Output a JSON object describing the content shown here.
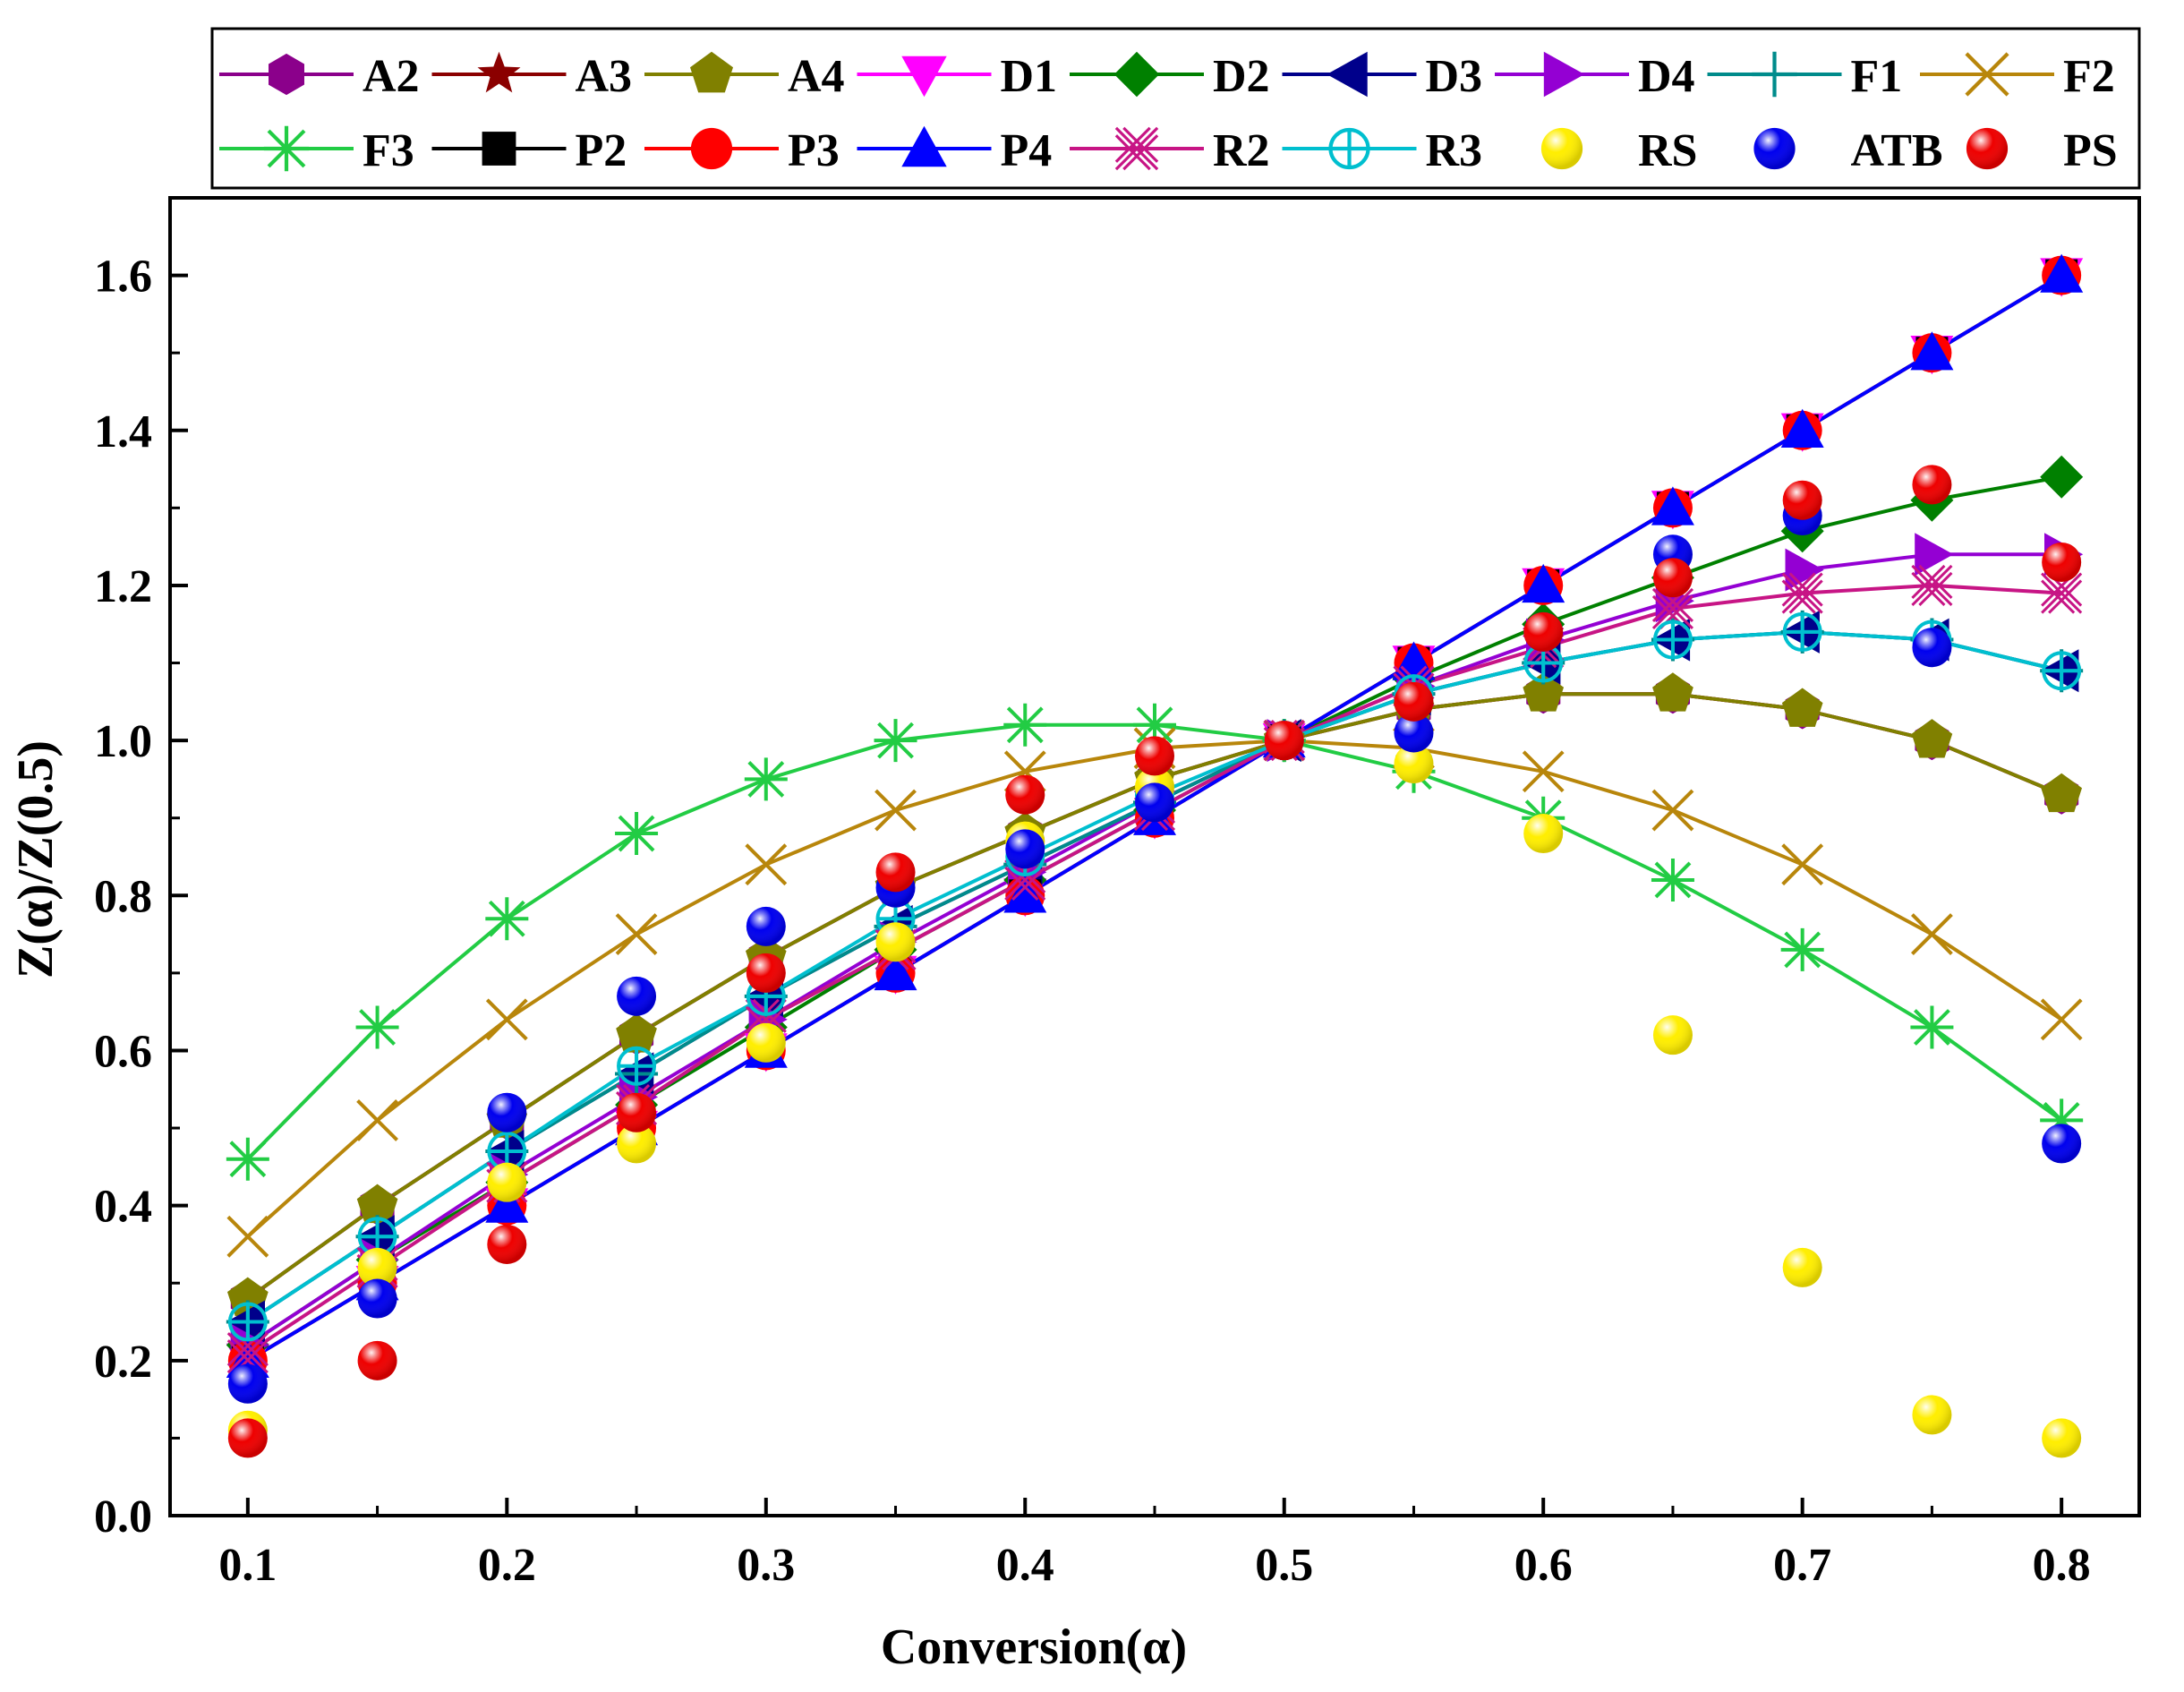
{
  "chart_data": {
    "type": "line",
    "title": "",
    "xlabel": "Conversion(α)",
    "ylabel": "Z(α)/Z(0.5)",
    "xlim": [
      0.07,
      0.83
    ],
    "ylim": [
      0.0,
      1.7
    ],
    "xticks": [
      0.1,
      0.2,
      0.3,
      0.4,
      0.5,
      0.6,
      0.7,
      0.8
    ],
    "xtick_labels": [
      "0.1",
      "0.2",
      "0.3",
      "0.4",
      "0.5",
      "0.6",
      "0.7",
      "0.8"
    ],
    "yticks": [
      0.0,
      0.2,
      0.4,
      0.6,
      0.8,
      1.0,
      1.2,
      1.4,
      1.6
    ],
    "ytick_labels": [
      "0.0",
      "0.2",
      "0.4",
      "0.6",
      "0.8",
      "1.0",
      "1.2",
      "1.4",
      "1.6"
    ],
    "x": [
      0.1,
      0.15,
      0.2,
      0.25,
      0.3,
      0.35,
      0.4,
      0.45,
      0.5,
      0.55,
      0.6,
      0.65,
      0.7,
      0.75,
      0.8
    ],
    "legend_position": "top",
    "series": [
      {
        "name": "A2",
        "color": "#8B008B",
        "marker": "hexagon",
        "line": true,
        "values": [
          0.28,
          0.4,
          0.51,
          0.62,
          0.72,
          0.81,
          0.88,
          0.95,
          1.0,
          1.04,
          1.06,
          1.06,
          1.04,
          1.0,
          0.93
        ]
      },
      {
        "name": "A3",
        "color": "#8B0000",
        "marker": "star",
        "line": true,
        "values": [
          0.28,
          0.4,
          0.51,
          0.62,
          0.72,
          0.81,
          0.88,
          0.95,
          1.0,
          1.04,
          1.06,
          1.06,
          1.04,
          1.0,
          0.93
        ]
      },
      {
        "name": "A4",
        "color": "#808000",
        "marker": "pentagon",
        "line": true,
        "values": [
          0.28,
          0.4,
          0.51,
          0.62,
          0.72,
          0.81,
          0.88,
          0.95,
          1.0,
          1.04,
          1.06,
          1.06,
          1.04,
          1.0,
          0.93
        ]
      },
      {
        "name": "D1",
        "color": "#FF00FF",
        "marker": "triangle-down",
        "line": true,
        "values": [
          0.2,
          0.3,
          0.4,
          0.5,
          0.6,
          0.7,
          0.8,
          0.9,
          1.0,
          1.1,
          1.2,
          1.3,
          1.4,
          1.5,
          1.6
        ]
      },
      {
        "name": "D2",
        "color": "#008000",
        "marker": "diamond",
        "line": true,
        "values": [
          0.22,
          0.33,
          0.43,
          0.53,
          0.63,
          0.73,
          0.82,
          0.91,
          1.0,
          1.08,
          1.15,
          1.21,
          1.27,
          1.31,
          1.34
        ]
      },
      {
        "name": "D3",
        "color": "#00008B",
        "marker": "triangle-left",
        "line": true,
        "values": [
          0.25,
          0.36,
          0.47,
          0.57,
          0.67,
          0.76,
          0.84,
          0.92,
          1.0,
          1.06,
          1.1,
          1.13,
          1.14,
          1.13,
          1.09
        ]
      },
      {
        "name": "D4",
        "color": "#9400D3",
        "marker": "triangle-right",
        "line": true,
        "values": [
          0.22,
          0.33,
          0.44,
          0.54,
          0.64,
          0.74,
          0.83,
          0.92,
          1.0,
          1.07,
          1.13,
          1.18,
          1.22,
          1.24,
          1.24
        ]
      },
      {
        "name": "F1",
        "color": "#008B8B",
        "marker": "plus",
        "line": true,
        "values": [
          0.25,
          0.36,
          0.47,
          0.57,
          0.67,
          0.76,
          0.84,
          0.92,
          1.0,
          1.06,
          1.1,
          1.13,
          1.14,
          1.13,
          1.09
        ]
      },
      {
        "name": "F2",
        "color": "#B8860B",
        "marker": "x",
        "line": true,
        "values": [
          0.36,
          0.51,
          0.64,
          0.75,
          0.84,
          0.91,
          0.96,
          0.99,
          1.0,
          0.99,
          0.96,
          0.91,
          0.84,
          0.75,
          0.64
        ]
      },
      {
        "name": "F3",
        "color": "#22CC44",
        "marker": "asterisk",
        "line": true,
        "values": [
          0.46,
          0.63,
          0.77,
          0.88,
          0.95,
          1.0,
          1.02,
          1.02,
          1.0,
          0.96,
          0.9,
          0.82,
          0.73,
          0.63,
          0.51
        ]
      },
      {
        "name": "P2",
        "color": "#000000",
        "marker": "square",
        "line": true,
        "values": [
          0.2,
          0.3,
          0.4,
          0.5,
          0.6,
          0.7,
          0.8,
          0.9,
          1.0,
          1.1,
          1.2,
          1.3,
          1.4,
          1.5,
          1.6
        ]
      },
      {
        "name": "P3",
        "color": "#FF0000",
        "marker": "circle",
        "line": true,
        "values": [
          0.2,
          0.3,
          0.4,
          0.5,
          0.6,
          0.7,
          0.8,
          0.9,
          1.0,
          1.1,
          1.2,
          1.3,
          1.4,
          1.5,
          1.6
        ]
      },
      {
        "name": "P4",
        "color": "#0000FF",
        "marker": "triangle-up",
        "line": true,
        "values": [
          0.2,
          0.3,
          0.4,
          0.5,
          0.6,
          0.7,
          0.8,
          0.9,
          1.0,
          1.1,
          1.2,
          1.3,
          1.4,
          1.5,
          1.6
        ]
      },
      {
        "name": "R2",
        "color": "#C71585",
        "marker": "x-box",
        "line": true,
        "values": [
          0.21,
          0.32,
          0.43,
          0.53,
          0.64,
          0.73,
          0.82,
          0.91,
          1.0,
          1.07,
          1.12,
          1.17,
          1.19,
          1.2,
          1.19
        ]
      },
      {
        "name": "R3",
        "color": "#00BFCF",
        "marker": "circle-plus",
        "line": true,
        "values": [
          0.25,
          0.36,
          0.47,
          0.58,
          0.67,
          0.77,
          0.85,
          0.93,
          1.0,
          1.06,
          1.1,
          1.13,
          1.14,
          1.13,
          1.09
        ]
      },
      {
        "name": "RS",
        "color": "#FFEE00",
        "marker": "ball",
        "line": false,
        "values": [
          0.11,
          0.32,
          0.43,
          0.48,
          0.61,
          0.74,
          0.87,
          0.94,
          1.0,
          0.97,
          0.88,
          0.62,
          0.32,
          0.13,
          0.1
        ]
      },
      {
        "name": "ATB",
        "color": "#0000EE",
        "marker": "ball",
        "line": false,
        "values": [
          0.17,
          0.28,
          0.52,
          0.67,
          0.76,
          0.81,
          0.86,
          0.92,
          1.0,
          1.01,
          1.14,
          1.24,
          1.29,
          1.12,
          0.48
        ]
      },
      {
        "name": "PS",
        "color": "#EE0000",
        "marker": "ball",
        "line": false,
        "values": [
          0.1,
          0.2,
          0.35,
          0.52,
          0.7,
          0.83,
          0.93,
          0.98,
          1.0,
          1.05,
          1.14,
          1.21,
          1.31,
          1.33,
          1.23
        ]
      }
    ]
  }
}
